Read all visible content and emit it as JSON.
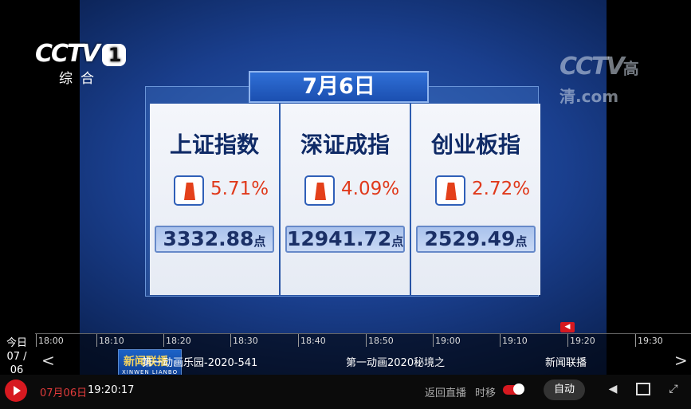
{
  "video": {
    "channel_logo": "CCTV",
    "channel_number": "1",
    "channel_sub": "综合",
    "watermark": "CCTV",
    "watermark_hd": "高清",
    "watermark_suffix": ".com",
    "date_title": "7月6日",
    "indices": [
      {
        "name": "上证指数",
        "change": "5.71%",
        "value": "3332.88",
        "unit": "点"
      },
      {
        "name": "深证成指",
        "change": "4.09%",
        "value": "12941.72",
        "unit": "点"
      },
      {
        "name": "创业板指",
        "change": "2.72%",
        "value": "2529.49",
        "unit": "点"
      }
    ]
  },
  "timeline": {
    "today_label": "今日",
    "today_date": "07 / 06",
    "ticks": [
      "18:00",
      "18:10",
      "18:20",
      "18:30",
      "18:40",
      "18:50",
      "19:00",
      "19:10",
      "19:20",
      "19:30"
    ],
    "programs": [
      {
        "title": "第一动画乐园-2020-541"
      },
      {
        "title": "第一动画2020秘境之"
      },
      {
        "title": "新闻联播"
      }
    ],
    "thumb_title": "新闻联播",
    "thumb_sub": "XINWEN LIANBO",
    "prev_arrow": "<",
    "next_arrow": ">"
  },
  "controls": {
    "date": "07月06日",
    "time": "19:20:17",
    "back_live": "返回直播",
    "timeshift": "时移",
    "auto": "自动"
  },
  "colors": {
    "accent": "#d71920",
    "panel_text": "#0f2a66",
    "change_red": "#e0391b"
  }
}
